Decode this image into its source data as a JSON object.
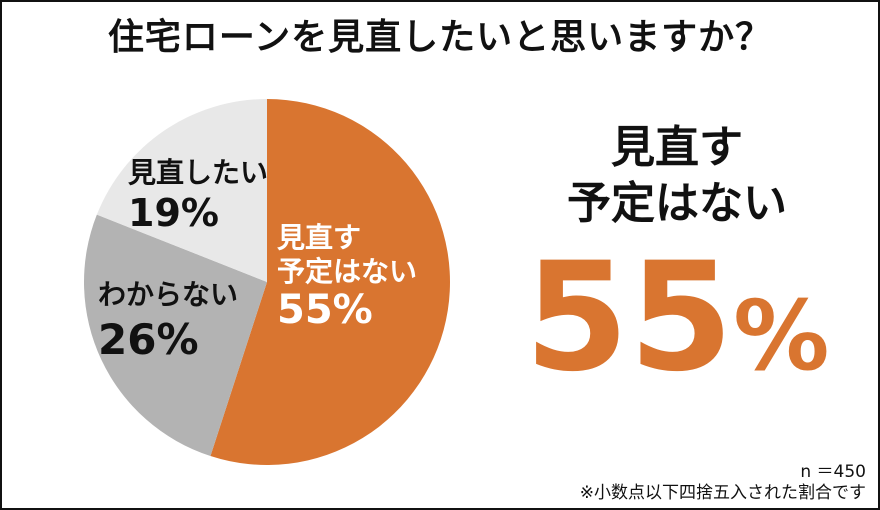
{
  "title": "住宅ローンを見直したいと思いますか？",
  "chart_data": {
    "type": "pie",
    "slices": [
      {
        "label_lines": [
          "見直す",
          "予定はない"
        ],
        "value": 55,
        "value_label": "55%",
        "color": "#d97530",
        "text_color": "#ffffff"
      },
      {
        "label_lines": [
          "わからない"
        ],
        "value": 26,
        "value_label": "26%",
        "color": "#b3b3b3",
        "text_color": "#111111"
      },
      {
        "label_lines": [
          "見直したい"
        ],
        "value": 19,
        "value_label": "19%",
        "color": "#e8e8e8",
        "text_color": "#111111"
      }
    ]
  },
  "highlight": {
    "line1": "見直す",
    "line2": "予定はない",
    "value": "55",
    "symbol": "%"
  },
  "footer": {
    "n": "n ＝450",
    "note": "※小数点以下四捨五入された割合です"
  }
}
